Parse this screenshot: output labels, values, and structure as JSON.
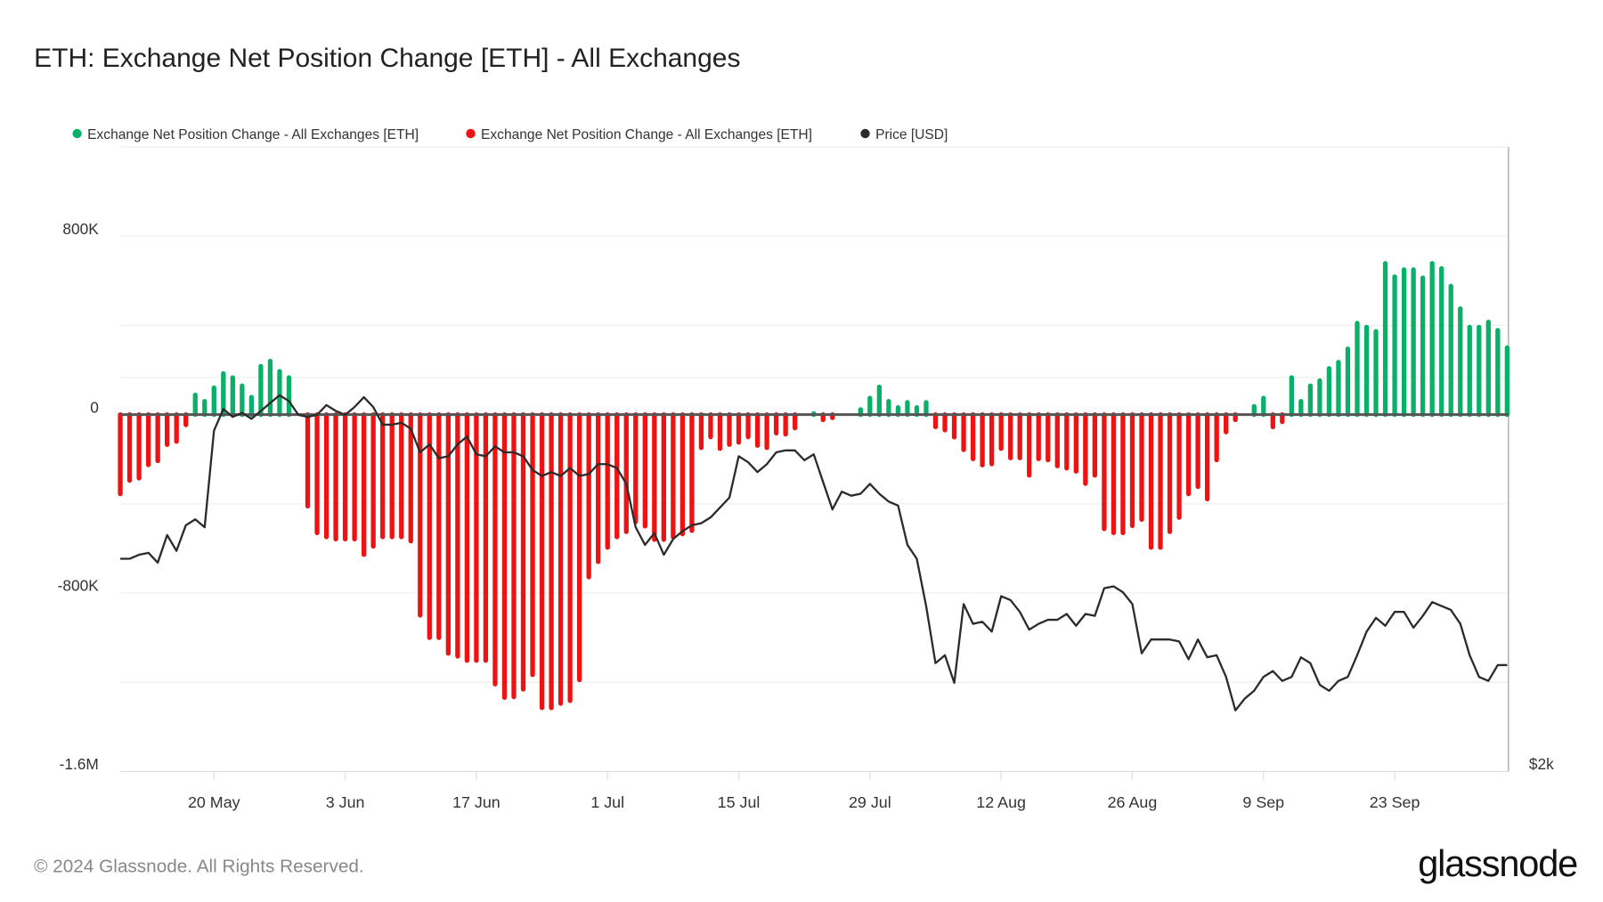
{
  "title": "ETH: Exchange Net Position Change [ETH] - All Exchanges",
  "footer": "© 2024 Glassnode. All Rights Reserved.",
  "logo": "glassnode",
  "colors": {
    "positive": "#0aaf68",
    "negative": "#ee1212",
    "price": "#2b2b2b",
    "zero_line": "#555555",
    "grid": "#eeeeee"
  },
  "chart_data": {
    "type": "bar",
    "title": "ETH: Exchange Net Position Change [ETH] - All Exchanges",
    "legend": [
      {
        "label": "Exchange Net Position Change - All Exchanges [ETH]",
        "color": "#0aaf68"
      },
      {
        "label": "Exchange Net Position Change - All Exchanges [ETH]",
        "color": "#ee1212"
      },
      {
        "label": "Price [USD]",
        "color": "#2b2b2b"
      }
    ],
    "legend_position": "top-left",
    "x_start_date": "2024-05-10",
    "x_ticks": [
      {
        "label": "20 May",
        "day": 10
      },
      {
        "label": "3 Jun",
        "day": 24
      },
      {
        "label": "17 Jun",
        "day": 38
      },
      {
        "label": "1 Jul",
        "day": 52
      },
      {
        "label": "15 Jul",
        "day": 66
      },
      {
        "label": "29 Jul",
        "day": 80
      },
      {
        "label": "12 Aug",
        "day": 94
      },
      {
        "label": "26 Aug",
        "day": 108
      },
      {
        "label": "9 Sep",
        "day": 122
      },
      {
        "label": "23 Sep",
        "day": 136
      }
    ],
    "y_ticks": [
      {
        "label": "800K",
        "value": 800000
      },
      {
        "label": "0",
        "value": 0
      },
      {
        "label": "-800K",
        "value": -800000
      },
      {
        "label": "-1.6M",
        "value": -1600000
      }
    ],
    "ylim": [
      -1600000,
      1200000
    ],
    "y2_label": "$2k",
    "y2lim": [
      2000,
      5170
    ],
    "y2_grid": [
      4000
    ],
    "grid": true,
    "net_position_change_k": [
      -355,
      -295,
      -285,
      -225,
      -207,
      -134,
      -120,
      -46,
      88,
      60,
      120,
      184,
      166,
      129,
      78,
      217,
      240,
      194,
      166,
      0,
      -410,
      -530,
      -548,
      -558,
      -558,
      -558,
      -627,
      -590,
      -548,
      -548,
      -548,
      -567,
      -899,
      -1000,
      -1000,
      -1070,
      -1083,
      -1102,
      -1102,
      -1102,
      -1208,
      -1268,
      -1265,
      -1231,
      -1166,
      -1314,
      -1314,
      -1295,
      -1282,
      -1189,
      -728,
      -659,
      -595,
      -548,
      -525,
      -480,
      -500,
      -560,
      -560,
      -548,
      -535,
      -520,
      -148,
      -100,
      -152,
      -134,
      -124,
      -100,
      -138,
      -148,
      -83,
      -88,
      -60,
      0,
      5,
      -23,
      -14,
      0,
      0,
      23,
      74,
      124,
      60,
      32,
      55,
      32,
      55,
      -55,
      -69,
      -101,
      -157,
      -198,
      -226,
      -221,
      -152,
      -194,
      -194,
      -272,
      -198,
      -203,
      -230,
      -240,
      -254,
      -309,
      -272,
      -512,
      -530,
      -530,
      -498,
      -470,
      -595,
      -595,
      -525,
      -461,
      -355,
      -323,
      -378,
      -203,
      -78,
      -23,
      0,
      37,
      74,
      -55,
      -32,
      166,
      60,
      129,
      152,
      207,
      235,
      295,
      410,
      392,
      373,
      678,
      618,
      650,
      650,
      613,
      678,
      655,
      576,
      475,
      392,
      392,
      415,
      378,
      300
    ],
    "price_usd": [
      3080,
      3080,
      3100,
      3110,
      3060,
      3200,
      3120,
      3250,
      3280,
      3240,
      3730,
      3840,
      3800,
      3820,
      3790,
      3830,
      3870,
      3910,
      3880,
      3810,
      3800,
      3810,
      3860,
      3830,
      3810,
      3850,
      3900,
      3850,
      3760,
      3760,
      3770,
      3740,
      3620,
      3660,
      3590,
      3600,
      3660,
      3700,
      3610,
      3600,
      3650,
      3620,
      3620,
      3600,
      3530,
      3500,
      3520,
      3500,
      3540,
      3500,
      3510,
      3560,
      3560,
      3540,
      3460,
      3240,
      3150,
      3210,
      3100,
      3180,
      3220,
      3250,
      3260,
      3290,
      3340,
      3390,
      3600,
      3570,
      3520,
      3560,
      3620,
      3630,
      3630,
      3580,
      3610,
      3470,
      3330,
      3420,
      3400,
      3410,
      3460,
      3410,
      3370,
      3350,
      3150,
      3080,
      2840,
      2550,
      2590,
      2450,
      2850,
      2750,
      2760,
      2710,
      2890,
      2870,
      2810,
      2720,
      2750,
      2770,
      2770,
      2800,
      2740,
      2800,
      2790,
      2930,
      2940,
      2910,
      2850,
      2600,
      2670,
      2670,
      2670,
      2660,
      2570,
      2670,
      2580,
      2590,
      2480,
      2310,
      2370,
      2410,
      2480,
      2510,
      2460,
      2480,
      2580,
      2550,
      2440,
      2410,
      2460,
      2480,
      2590,
      2710,
      2780,
      2740,
      2810,
      2810,
      2730,
      2790,
      2860,
      2840,
      2820,
      2750,
      2590,
      2480,
      2460,
      2540,
      2540
    ]
  }
}
